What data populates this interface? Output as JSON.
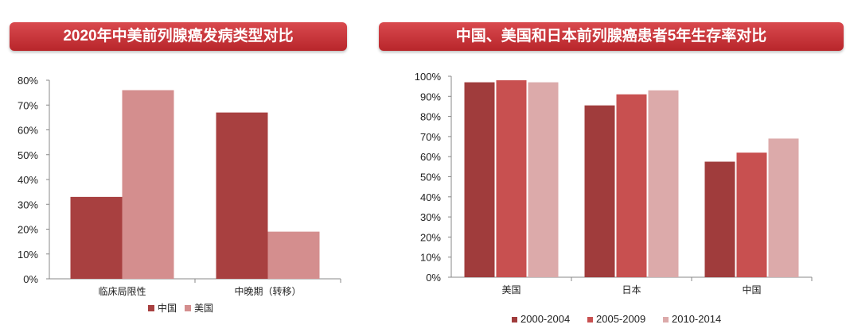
{
  "chart_data": [
    {
      "type": "bar",
      "title": "2020年中美前列腺癌发病类型对比",
      "categories": [
        "临床局限性",
        "中晚期（转移）"
      ],
      "series": [
        {
          "name": "中国",
          "values": [
            33,
            67
          ],
          "color": "#a84040"
        },
        {
          "name": "美国",
          "values": [
            76,
            19
          ],
          "color": "#d48e8e"
        }
      ],
      "ylim": [
        0,
        80
      ],
      "yticks": [
        "0%",
        "10%",
        "20%",
        "30%",
        "40%",
        "50%",
        "60%",
        "70%",
        "80%"
      ],
      "legend": "bottom",
      "grid": false
    },
    {
      "type": "bar",
      "title": "中国、美国和日本前列腺癌患者5年生存率对比",
      "categories": [
        "美国",
        "日本",
        "中国"
      ],
      "series": [
        {
          "name": "2000-2004",
          "values": [
            97,
            85.5,
            57.5
          ],
          "color": "#a03c3c"
        },
        {
          "name": "2005-2009",
          "values": [
            98,
            91,
            62
          ],
          "color": "#c85050"
        },
        {
          "name": "2010-2014",
          "values": [
            97,
            93,
            69
          ],
          "color": "#dcaaaa"
        }
      ],
      "ylim": [
        0,
        100
      ],
      "yticks": [
        "0%",
        "10%",
        "20%",
        "30%",
        "40%",
        "50%",
        "60%",
        "70%",
        "80%",
        "90%",
        "100%"
      ],
      "legend": "bottom",
      "grid": false
    }
  ]
}
